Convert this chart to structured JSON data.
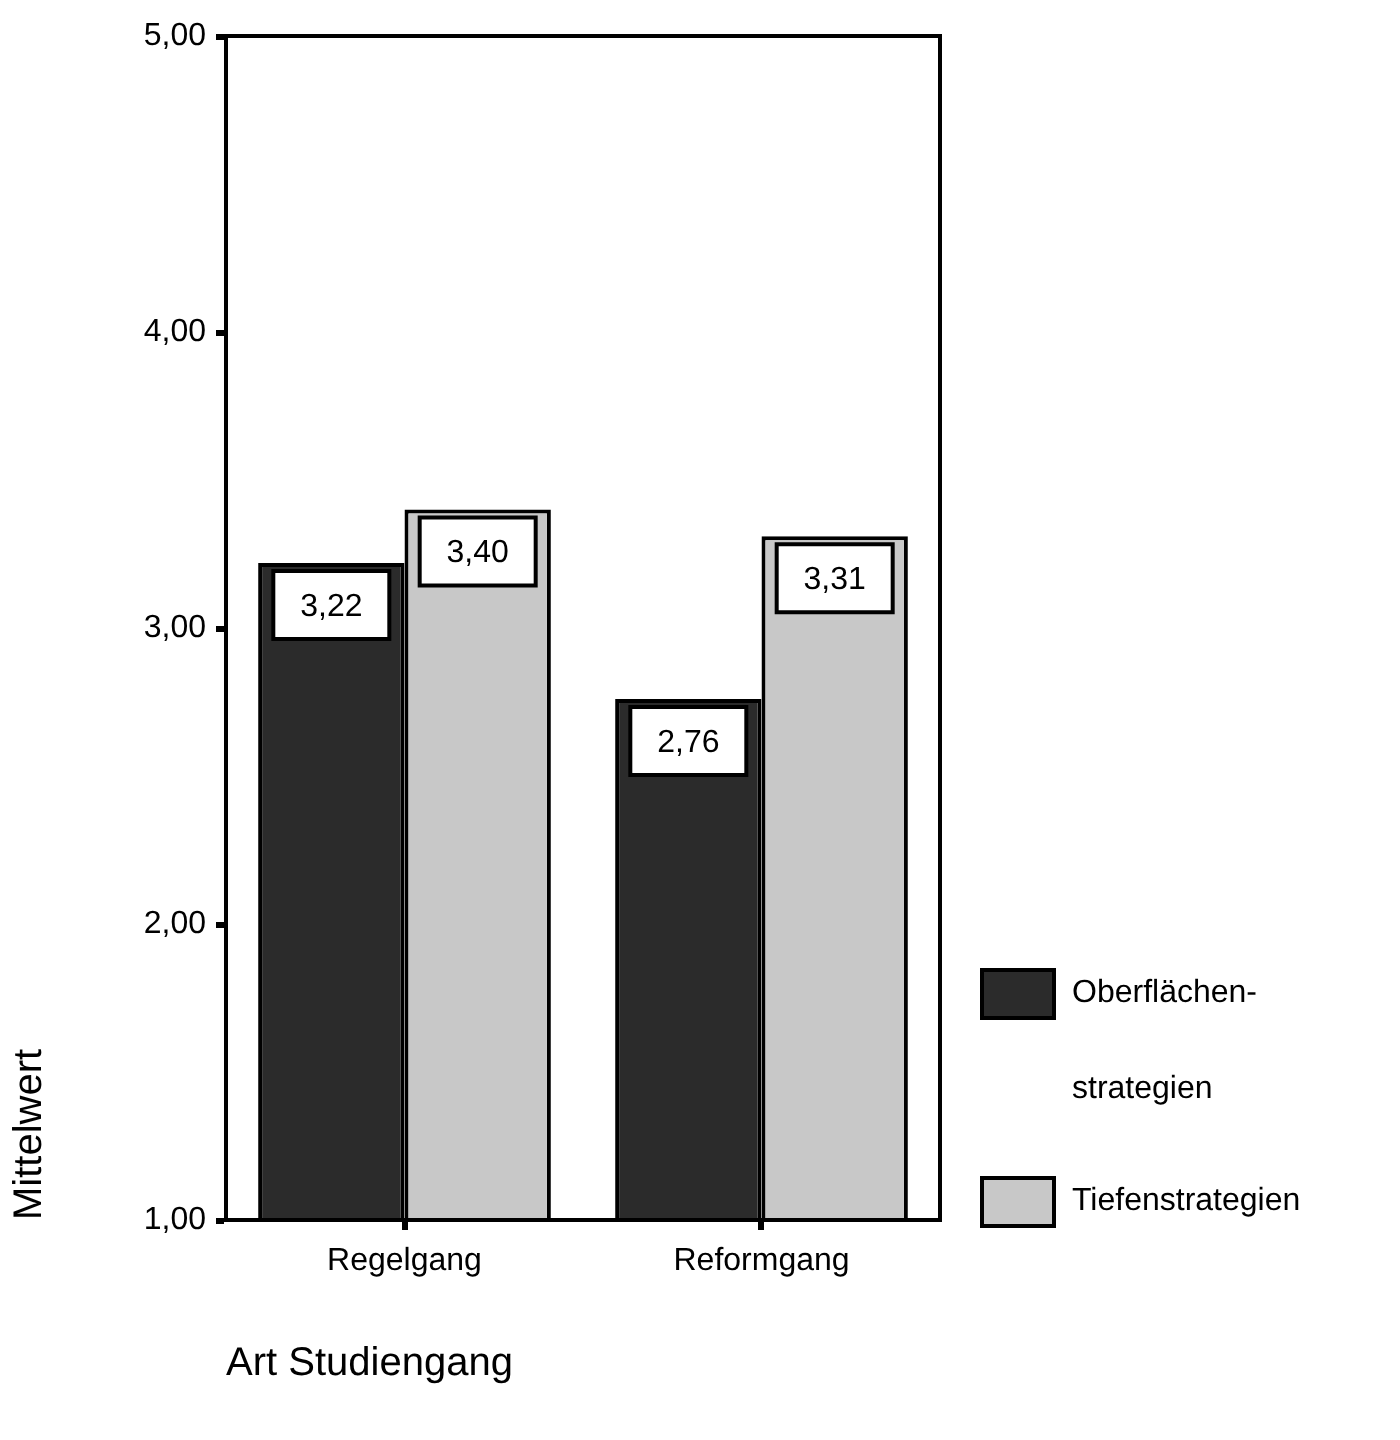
{
  "chart_data": {
    "type": "bar",
    "categories": [
      "Regelgang",
      "Reformgang"
    ],
    "series": [
      {
        "name": "Oberflächen-strategien",
        "color": "#2b2b2b",
        "values": [
          3.22,
          2.76
        ],
        "value_labels": [
          "3,22",
          "2,76"
        ]
      },
      {
        "name": "Tiefenstrategien",
        "color": "#c8c8c8",
        "values": [
          3.4,
          3.31
        ],
        "value_labels": [
          "3,40",
          "3,31"
        ]
      }
    ],
    "xlabel": "Art Studiengang",
    "ylabel": "Mittelwert",
    "ylim": [
      1,
      5
    ],
    "yticks": [
      {
        "value": 1,
        "label": "1,00"
      },
      {
        "value": 2,
        "label": "2,00"
      },
      {
        "value": 3,
        "label": "3,00"
      },
      {
        "value": 4,
        "label": "4,00"
      },
      {
        "value": 5,
        "label": "5,00"
      }
    ],
    "legend": "bottom right",
    "grid": false
  }
}
